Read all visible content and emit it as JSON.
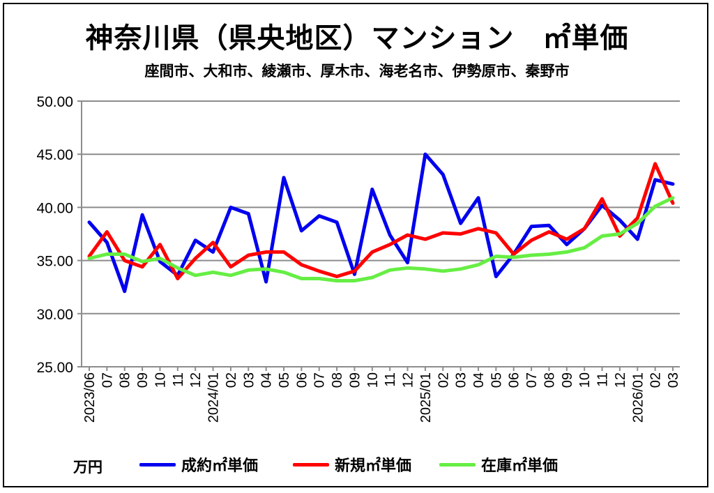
{
  "chart_data": {
    "type": "line",
    "title": "神奈川県（県央地区）マンション　㎡単価",
    "subtitle": "座間市、大和市、綾瀬市、厚木市、海老名市、伊勢原市、秦野市",
    "ylabel": "万円",
    "ylim": [
      25,
      50
    ],
    "yticks": [
      "25.00",
      "30.00",
      "35.00",
      "40.00",
      "45.00",
      "50.00"
    ],
    "grid": true,
    "legend_position": "bottom",
    "x": [
      "2023/06",
      "07",
      "08",
      "09",
      "10",
      "11",
      "12",
      "2024/01",
      "02",
      "03",
      "04",
      "05",
      "06",
      "07",
      "08",
      "09",
      "10",
      "11",
      "12",
      "2025/01",
      "02",
      "03",
      "04",
      "05",
      "06",
      "07",
      "08",
      "09",
      "10",
      "11",
      "12",
      "2026/01",
      "02",
      "03"
    ],
    "series": [
      {
        "name": "成約㎡単価",
        "color": "#0000ee",
        "values": [
          38.6,
          36.7,
          32.1,
          39.3,
          34.9,
          33.6,
          36.9,
          35.8,
          40.0,
          39.4,
          33.0,
          42.8,
          37.8,
          39.2,
          38.6,
          33.7,
          41.7,
          37.4,
          34.8,
          45.0,
          43.1,
          38.5,
          40.9,
          33.5,
          35.6,
          38.2,
          38.3,
          36.5,
          38.0,
          40.2,
          38.8,
          37.0,
          42.6,
          42.2
        ]
      },
      {
        "name": "新規㎡単価",
        "color": "#ff0000",
        "values": [
          35.4,
          37.7,
          35.0,
          34.4,
          36.5,
          33.3,
          35.2,
          36.7,
          34.4,
          35.5,
          35.8,
          35.8,
          34.6,
          34.0,
          33.5,
          34.0,
          35.8,
          36.5,
          37.4,
          37.0,
          37.6,
          37.5,
          38.0,
          37.6,
          35.6,
          36.9,
          37.7,
          37.0,
          38.0,
          40.8,
          37.3,
          39.0,
          44.1,
          40.4
        ]
      },
      {
        "name": "在庫㎡単価",
        "color": "#66ee44",
        "values": [
          35.2,
          35.6,
          35.6,
          34.9,
          35.2,
          34.3,
          33.6,
          33.9,
          33.6,
          34.1,
          34.2,
          33.9,
          33.3,
          33.3,
          33.1,
          33.1,
          33.4,
          34.1,
          34.3,
          34.2,
          34.0,
          34.2,
          34.6,
          35.4,
          35.3,
          35.5,
          35.6,
          35.8,
          36.2,
          37.3,
          37.5,
          38.5,
          40.1,
          40.9
        ]
      }
    ]
  }
}
